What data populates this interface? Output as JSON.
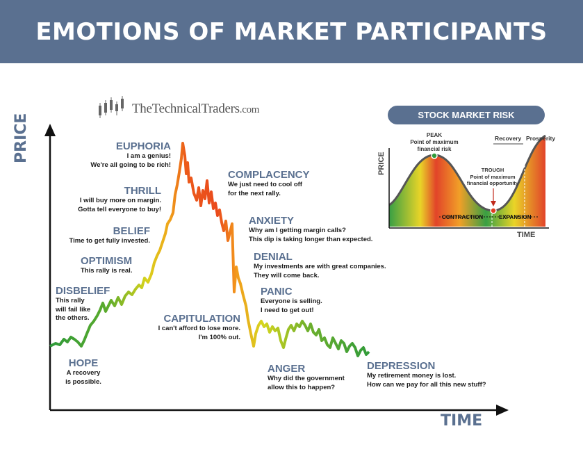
{
  "title": "EMOTIONS OF MARKET PARTICIPANTS",
  "brand": {
    "part1": "The",
    "part2": "Technical",
    "part3": "Traders",
    "suffix": ".com"
  },
  "axes": {
    "y_label": "PRICE",
    "x_label": "TIME"
  },
  "phases": [
    {
      "name": "HOPE",
      "desc": "A recovery\nis possible."
    },
    {
      "name": "DISBELIEF",
      "desc": "This rally\nwill fail like\nthe others."
    },
    {
      "name": "OPTIMISM",
      "desc": "This rally is real."
    },
    {
      "name": "BELIEF",
      "desc": "Time to get fully invested."
    },
    {
      "name": "THRILL",
      "desc": "I will buy more on margin.\nGotta tell everyone to buy!"
    },
    {
      "name": "EUPHORIA",
      "desc": "I am a genius!\nWe're all going to be rich!"
    },
    {
      "name": "COMPLACENCY",
      "desc": "We just need to cool off\nfor the next rally."
    },
    {
      "name": "ANXIETY",
      "desc": "Why am I getting margin calls?\nThis dip is taking longer than expected."
    },
    {
      "name": "DENIAL",
      "desc": "My investments are with great companies.\nThey will come back."
    },
    {
      "name": "PANIC",
      "desc": "Everyone is selling.\nI need to get out!"
    },
    {
      "name": "CAPITULATION",
      "desc": "I can't afford to lose more.\nI'm 100% out."
    },
    {
      "name": "ANGER",
      "desc": "Why did the government\nallow this to happen?"
    },
    {
      "name": "DEPRESSION",
      "desc": "My retirement money is lost.\nHow can we pay for all this new stuff?"
    }
  ],
  "risk_inset": {
    "title": "STOCK MARKET RISK",
    "y_label": "PRICE",
    "x_label": "TIME",
    "peak": {
      "label": "PEAK",
      "desc1": "Point of maximum",
      "desc2": "financial risk"
    },
    "trough": {
      "label": "TROUGH",
      "desc1": "Point of maximum",
      "desc2": "financial opportunity"
    },
    "recovery": "Recovery",
    "prosperity": "Prosperity",
    "contraction": "CONTRACTION",
    "expansion": "EXPANSION"
  },
  "colors": {
    "banner": "#5a7090",
    "phase_title": "#5a7090",
    "green": "#2e9a3a",
    "yellow": "#e6d21a",
    "orange": "#f08a1c",
    "red": "#e03a1e"
  }
}
